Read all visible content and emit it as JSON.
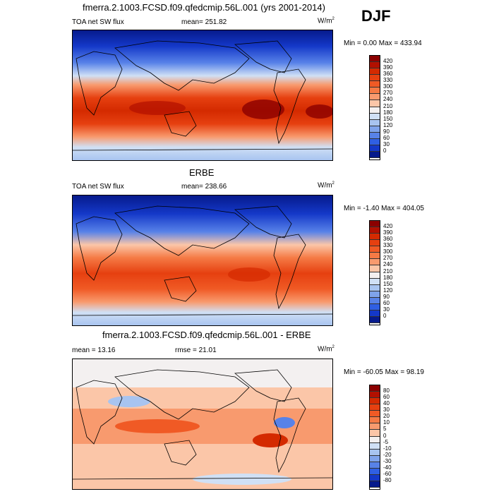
{
  "season": "DJF",
  "panels": [
    {
      "title": "fmerra.2.1003.FCSD.f09.qfedcmip.56L.001 (yrs 2001-2014)",
      "left_label": "TOA net SW flux",
      "center_label": "mean= 251.82",
      "units": "W/m",
      "units_sup": "2",
      "minmax": "Min =   0.00 Max = 433.94",
      "levels": [
        "420",
        "390",
        "360",
        "330",
        "300",
        "270",
        "240",
        "210",
        "180",
        "150",
        "120",
        "90",
        "60",
        "30",
        "0"
      ],
      "colors": [
        "#8b0000",
        "#b21000",
        "#d42a00",
        "#e64010",
        "#f05a25",
        "#f57a45",
        "#f89a6e",
        "#fbc6a8",
        "#f3f0f0",
        "#d0e0f5",
        "#a8c4f0",
        "#7fa3eb",
        "#5882e8",
        "#2f5fe3",
        "#1438c8",
        "#061a8c"
      ]
    },
    {
      "title": "ERBE",
      "left_label": "TOA net SW flux",
      "center_label": "mean= 238.66",
      "units": "W/m",
      "units_sup": "2",
      "minmax": "Min =  -1.40 Max = 404.05",
      "levels": [
        "420",
        "390",
        "360",
        "330",
        "300",
        "270",
        "240",
        "210",
        "180",
        "150",
        "120",
        "90",
        "60",
        "30",
        "0"
      ],
      "colors": [
        "#8b0000",
        "#b21000",
        "#d42a00",
        "#e64010",
        "#f05a25",
        "#f57a45",
        "#f89a6e",
        "#fbc6a8",
        "#f3f0f0",
        "#d0e0f5",
        "#a8c4f0",
        "#7fa3eb",
        "#5882e8",
        "#2f5fe3",
        "#1438c8",
        "#061a8c"
      ]
    },
    {
      "title": "fmerra.2.1003.FCSD.f09.qfedcmip.56L.001 - ERBE",
      "left_label": "mean =  13.16",
      "center_label": "rmse =  21.01",
      "units": "W/m",
      "units_sup": "2",
      "minmax": "Min = -60.05 Max =  98.19",
      "levels": [
        "80",
        "60",
        "40",
        "30",
        "20",
        "10",
        "5",
        "0",
        "-5",
        "-10",
        "-20",
        "-30",
        "-40",
        "-60",
        "-80"
      ],
      "colors": [
        "#8b0000",
        "#b21000",
        "#d42a00",
        "#e64010",
        "#f05a25",
        "#f57a45",
        "#f89a6e",
        "#fbc6a8",
        "#f3f0f0",
        "#d0e0f5",
        "#a8c4f0",
        "#7fa3eb",
        "#5882e8",
        "#2f5fe3",
        "#1438c8",
        "#061a8c"
      ]
    }
  ]
}
